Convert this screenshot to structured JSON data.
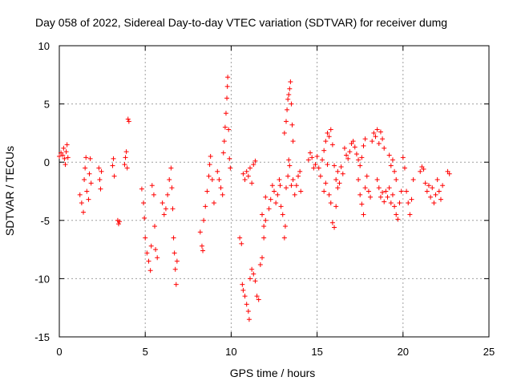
{
  "chart_data": {
    "type": "scatter",
    "title": "Day 058 of 2022, Sidereal Day-to-day VTEC variation (SDTVAR) for receiver dumg",
    "xlabel": "GPS time / hours",
    "ylabel": "SDTVAR / TECUs",
    "xlim": [
      0,
      25
    ],
    "ylim": [
      -15,
      10
    ],
    "xticks": [
      0,
      5,
      10,
      15,
      20,
      25
    ],
    "yticks": [
      -15,
      -10,
      -5,
      0,
      5,
      10
    ],
    "xtick_labels": [
      "0",
      "5",
      "10",
      "15",
      "20",
      "25"
    ],
    "ytick_labels": [
      "-15",
      "-10",
      "-5",
      "0",
      "5",
      "10"
    ],
    "grid": true,
    "marker": "+",
    "color": "#ff0000",
    "series": [
      {
        "name": "SDTVAR",
        "points": [
          [
            0.0,
            0.5
          ],
          [
            0.1,
            0.8
          ],
          [
            0.2,
            0.6
          ],
          [
            0.25,
            1.2
          ],
          [
            0.3,
            0.3
          ],
          [
            0.35,
            -0.2
          ],
          [
            0.4,
            0.9
          ],
          [
            0.45,
            1.5
          ],
          [
            0.5,
            0.4
          ],
          [
            1.2,
            -2.8
          ],
          [
            1.3,
            -3.5
          ],
          [
            1.4,
            -4.3
          ],
          [
            1.45,
            -1.5
          ],
          [
            1.5,
            -0.5
          ],
          [
            1.55,
            0.4
          ],
          [
            1.6,
            -2.5
          ],
          [
            1.7,
            -3.2
          ],
          [
            1.75,
            -1.0
          ],
          [
            1.8,
            0.3
          ],
          [
            1.85,
            -1.8
          ],
          [
            2.3,
            -0.5
          ],
          [
            2.35,
            -1.5
          ],
          [
            2.4,
            -2.3
          ],
          [
            2.45,
            -0.8
          ],
          [
            3.1,
            -0.3
          ],
          [
            3.15,
            0.3
          ],
          [
            3.2,
            -1.2
          ],
          [
            3.4,
            -5.0
          ],
          [
            3.45,
            -5.3
          ],
          [
            3.5,
            -5.1
          ],
          [
            3.8,
            -0.2
          ],
          [
            3.85,
            0.4
          ],
          [
            3.9,
            0.9
          ],
          [
            3.95,
            -0.5
          ],
          [
            4.0,
            3.7
          ],
          [
            4.05,
            3.5
          ],
          [
            4.8,
            -2.3
          ],
          [
            4.9,
            -3.5
          ],
          [
            4.95,
            -4.8
          ],
          [
            5.0,
            -6.5
          ],
          [
            5.1,
            -7.8
          ],
          [
            5.2,
            -8.5
          ],
          [
            5.3,
            -9.3
          ],
          [
            5.35,
            -7.2
          ],
          [
            5.4,
            -2.0
          ],
          [
            5.5,
            -2.8
          ],
          [
            5.55,
            -5.5
          ],
          [
            5.6,
            -7.5
          ],
          [
            5.7,
            -8.2
          ],
          [
            6.0,
            -3.5
          ],
          [
            6.1,
            -4.5
          ],
          [
            6.2,
            -4.0
          ],
          [
            6.3,
            -2.8
          ],
          [
            6.4,
            -1.5
          ],
          [
            6.5,
            -0.5
          ],
          [
            6.55,
            -2.2
          ],
          [
            6.6,
            -4.0
          ],
          [
            6.65,
            -6.5
          ],
          [
            6.7,
            -7.8
          ],
          [
            6.75,
            -9.2
          ],
          [
            6.8,
            -10.5
          ],
          [
            6.85,
            -8.5
          ],
          [
            8.2,
            -6.0
          ],
          [
            8.3,
            -7.2
          ],
          [
            8.35,
            -7.6
          ],
          [
            8.4,
            -5.0
          ],
          [
            8.5,
            -3.8
          ],
          [
            8.6,
            -2.5
          ],
          [
            8.7,
            -1.2
          ],
          [
            8.75,
            -0.2
          ],
          [
            8.8,
            0.5
          ],
          [
            8.9,
            -1.5
          ],
          [
            9.0,
            -3.5
          ],
          [
            9.2,
            -0.8
          ],
          [
            9.3,
            -1.5
          ],
          [
            9.4,
            -2.2
          ],
          [
            9.5,
            -2.8
          ],
          [
            9.55,
            0.8
          ],
          [
            9.6,
            1.8
          ],
          [
            9.65,
            3.0
          ],
          [
            9.7,
            4.2
          ],
          [
            9.75,
            5.5
          ],
          [
            9.78,
            6.5
          ],
          [
            9.8,
            7.3
          ],
          [
            9.85,
            2.8
          ],
          [
            9.9,
            0.3
          ],
          [
            9.95,
            -0.5
          ],
          [
            10.5,
            -6.5
          ],
          [
            10.6,
            -7.0
          ],
          [
            10.65,
            -10.5
          ],
          [
            10.7,
            -11.0
          ],
          [
            10.8,
            -11.5
          ],
          [
            10.9,
            -12.2
          ],
          [
            11.0,
            -12.8
          ],
          [
            11.05,
            -13.5
          ],
          [
            11.1,
            -10.0
          ],
          [
            11.2,
            -9.2
          ],
          [
            11.3,
            -9.6
          ],
          [
            11.4,
            -10.2
          ],
          [
            11.5,
            -11.5
          ],
          [
            11.6,
            -11.8
          ],
          [
            11.7,
            -8.8
          ],
          [
            11.8,
            -8.2
          ],
          [
            11.9,
            -6.5
          ],
          [
            12.0,
            -5.0
          ],
          [
            10.7,
            -1.0
          ],
          [
            10.8,
            -1.5
          ],
          [
            10.9,
            -0.8
          ],
          [
            11.0,
            -1.2
          ],
          [
            11.1,
            -0.5
          ],
          [
            11.2,
            -1.8
          ],
          [
            11.3,
            -0.2
          ],
          [
            11.4,
            0.1
          ],
          [
            11.8,
            -4.5
          ],
          [
            11.9,
            -5.5
          ],
          [
            12.0,
            -3.0
          ],
          [
            12.2,
            -4.0
          ],
          [
            12.3,
            -3.2
          ],
          [
            12.4,
            -2.0
          ],
          [
            12.5,
            -2.5
          ],
          [
            12.6,
            -3.5
          ],
          [
            12.7,
            -2.8
          ],
          [
            12.8,
            -1.5
          ],
          [
            12.85,
            -2.0
          ],
          [
            12.9,
            -3.8
          ],
          [
            13.0,
            -4.5
          ],
          [
            13.1,
            -6.5
          ],
          [
            13.15,
            -5.5
          ],
          [
            13.2,
            -2.2
          ],
          [
            13.3,
            -1.2
          ],
          [
            13.35,
            0.2
          ],
          [
            13.4,
            -0.3
          ],
          [
            13.5,
            -2.0
          ],
          [
            13.6,
            -1.5
          ],
          [
            13.1,
            2.5
          ],
          [
            13.2,
            3.5
          ],
          [
            13.25,
            4.5
          ],
          [
            13.3,
            5.4
          ],
          [
            13.35,
            5.8
          ],
          [
            13.4,
            6.3
          ],
          [
            13.45,
            6.9
          ],
          [
            13.5,
            5.0
          ],
          [
            13.55,
            3.2
          ],
          [
            13.6,
            1.8
          ],
          [
            13.7,
            -2.8
          ],
          [
            13.8,
            -2.0
          ],
          [
            13.9,
            -1.2
          ],
          [
            14.0,
            -0.8
          ],
          [
            14.05,
            -2.5
          ],
          [
            14.5,
            0.2
          ],
          [
            14.6,
            0.8
          ],
          [
            14.7,
            0.4
          ],
          [
            14.8,
            -0.5
          ],
          [
            14.9,
            -0.2
          ],
          [
            15.0,
            0.5
          ],
          [
            15.1,
            -0.5
          ],
          [
            15.2,
            -1.2
          ],
          [
            15.3,
            0.2
          ],
          [
            15.4,
            1.0
          ],
          [
            15.5,
            1.8
          ],
          [
            15.6,
            2.5
          ],
          [
            15.7,
            2.2
          ],
          [
            15.8,
            2.8
          ],
          [
            15.9,
            1.5
          ],
          [
            16.0,
            -0.3
          ],
          [
            16.1,
            -1.5
          ],
          [
            16.2,
            -0.8
          ],
          [
            16.3,
            -1.8
          ],
          [
            16.4,
            -0.4
          ],
          [
            16.5,
            -1.0
          ],
          [
            15.4,
            -2.5
          ],
          [
            15.5,
            -1.8
          ],
          [
            15.6,
            -0.2
          ],
          [
            15.7,
            -2.8
          ],
          [
            15.8,
            -3.5
          ],
          [
            15.9,
            -5.2
          ],
          [
            16.0,
            -5.6
          ],
          [
            16.1,
            -3.8
          ],
          [
            16.2,
            -2.2
          ],
          [
            16.6,
            1.2
          ],
          [
            16.7,
            0.6
          ],
          [
            16.8,
            0.3
          ],
          [
            16.9,
            0.9
          ],
          [
            17.0,
            1.6
          ],
          [
            17.1,
            1.8
          ],
          [
            17.2,
            1.3
          ],
          [
            17.3,
            0.7
          ],
          [
            17.4,
            0.2
          ],
          [
            17.5,
            -0.3
          ],
          [
            17.6,
            0.4
          ],
          [
            17.7,
            1.4
          ],
          [
            17.8,
            2.0
          ],
          [
            17.4,
            -1.5
          ],
          [
            17.5,
            -2.8
          ],
          [
            17.6,
            -3.6
          ],
          [
            17.7,
            -4.5
          ],
          [
            17.8,
            -2.2
          ],
          [
            17.9,
            -1.2
          ],
          [
            18.0,
            -2.5
          ],
          [
            18.1,
            -3.0
          ],
          [
            18.2,
            1.8
          ],
          [
            18.3,
            2.5
          ],
          [
            18.4,
            2.2
          ],
          [
            18.5,
            2.8
          ],
          [
            18.6,
            1.6
          ],
          [
            18.7,
            2.6
          ],
          [
            18.8,
            2.0
          ],
          [
            18.9,
            1.2
          ],
          [
            18.5,
            -1.5
          ],
          [
            18.6,
            -2.2
          ],
          [
            18.7,
            -3.0
          ],
          [
            18.8,
            -2.6
          ],
          [
            18.9,
            -3.4
          ],
          [
            19.0,
            -2.5
          ],
          [
            19.1,
            -3.0
          ],
          [
            19.2,
            -2.2
          ],
          [
            19.3,
            -3.5
          ],
          [
            19.4,
            -2.8
          ],
          [
            19.5,
            -3.8
          ],
          [
            19.6,
            -4.5
          ],
          [
            19.7,
            -4.9
          ],
          [
            19.8,
            -3.5
          ],
          [
            19.9,
            -2.5
          ],
          [
            19.2,
            0.6
          ],
          [
            19.3,
            -0.3
          ],
          [
            19.4,
            0.2
          ],
          [
            19.5,
            -0.8
          ],
          [
            19.6,
            -1.5
          ],
          [
            20.0,
            0.4
          ],
          [
            20.1,
            -0.5
          ],
          [
            20.2,
            -2.5
          ],
          [
            20.3,
            -3.5
          ],
          [
            20.4,
            -4.5
          ],
          [
            20.5,
            -3.2
          ],
          [
            20.6,
            -1.5
          ],
          [
            21.0,
            -0.8
          ],
          [
            21.1,
            -0.4
          ],
          [
            21.2,
            -0.6
          ],
          [
            21.3,
            -1.8
          ],
          [
            21.4,
            -2.5
          ],
          [
            21.5,
            -2.0
          ],
          [
            21.6,
            -3.0
          ],
          [
            21.7,
            -2.2
          ],
          [
            21.8,
            -3.5
          ],
          [
            21.9,
            -2.8
          ],
          [
            22.0,
            -1.5
          ],
          [
            22.1,
            -2.5
          ],
          [
            22.2,
            -3.2
          ],
          [
            22.3,
            -2.0
          ],
          [
            22.6,
            -0.8
          ],
          [
            22.7,
            -1.0
          ]
        ]
      }
    ]
  }
}
